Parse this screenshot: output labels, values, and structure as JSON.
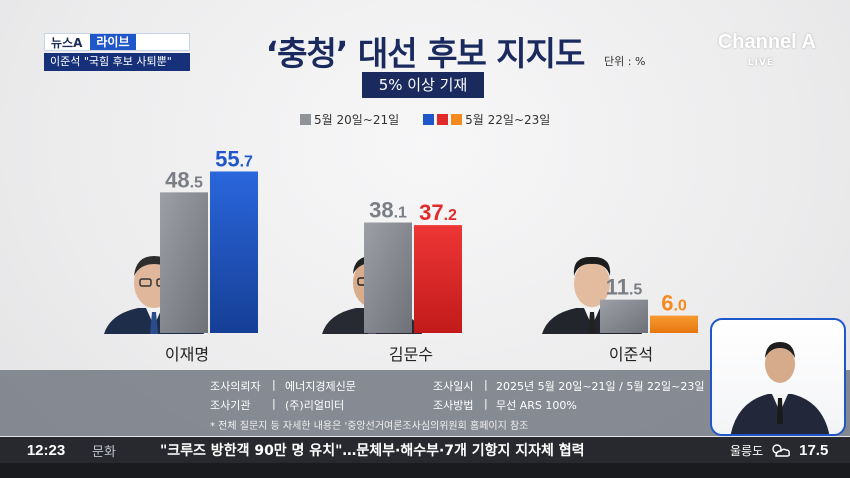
{
  "brand": {
    "news_label": "뉴스A",
    "live_label": "라이브",
    "headline": "이준석 \"국힘 후보 사퇴뿐\""
  },
  "channel_logo": {
    "name": "Channel A",
    "live": "LIVE"
  },
  "chart_data": {
    "type": "bar",
    "title": "‘충청’ 대선 후보 지지도",
    "subtitle": "5% 이상 기재",
    "unit_label": "단위 : %",
    "categories": [
      "이재명",
      "김문수",
      "이준석"
    ],
    "series": [
      {
        "name": "5월 20일~21일",
        "values": [
          48.5,
          38.1,
          11.5
        ],
        "colors": [
          "#8f9398"
        ]
      },
      {
        "name": "5월 22일~23일",
        "values": [
          55.7,
          37.2,
          6.0
        ],
        "colors": [
          "#1f56c9",
          "#e12a2a",
          "#f58a1f"
        ]
      }
    ],
    "value_labels_s1": [
      "48.5",
      "38.1",
      "11.5"
    ],
    "value_labels_s2": [
      "55.7",
      "37.2",
      "6.0"
    ],
    "legend_position": "top-center",
    "grid": false
  },
  "survey": {
    "client_label": "조사의뢰자",
    "client_value": "에너지경제신문",
    "agency_label": "조사기관",
    "agency_value": "(주)리얼미터",
    "date_label": "조사일시",
    "date_value": "2025년 5월 20일~21일 / 5월 22일~23일",
    "method_label": "조사방법",
    "method_value": "무선 ARS 100%",
    "note": "* 전체 질문지 등 자세한 내용은 '중앙선거여론조사심의위원회 홈페이지 참조"
  },
  "ticker": {
    "time": "12:23",
    "category": "문화",
    "text": "\"크루즈 방한객 90만 명 유치\"…문체부·해수부·7개 기항지 지자체 협력",
    "weather_place": "울릉도",
    "weather_icon": "partly-cloudy-icon",
    "temperature": "17.5"
  }
}
